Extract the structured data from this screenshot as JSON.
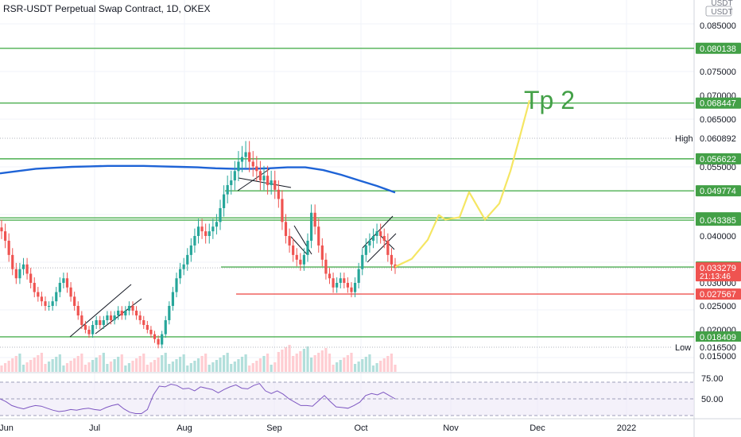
{
  "header": {
    "title": "RSR-USDT Perpetual Swap Contract, 1D, OKEX"
  },
  "chart_data": {
    "type": "candlestick",
    "currency_label": "USDT",
    "price_axis": {
      "ticks": [
        "0.085000",
        "0.075000",
        "0.070000",
        "0.065000",
        "0.055000",
        "0.040000",
        "0.030000",
        "0.025000",
        "0.020000",
        "0.016500",
        "0.015000"
      ],
      "labels": [
        {
          "value": "0.080138",
          "kind": "green"
        },
        {
          "value": "0.068447",
          "kind": "green"
        },
        {
          "value": "0.060892",
          "kind": "plain",
          "tag": "High"
        },
        {
          "value": "0.056622",
          "kind": "green"
        },
        {
          "value": "0.049774",
          "kind": "green"
        },
        {
          "value": "0.043888",
          "kind": "green"
        },
        {
          "value": "0.043385",
          "kind": "green"
        },
        {
          "value": "0.033455",
          "kind": "green"
        },
        {
          "value": "0.033279",
          "kind": "red",
          "sub": "21:13:46"
        },
        {
          "value": "0.027567",
          "kind": "red"
        },
        {
          "value": "0.018409",
          "kind": "green"
        },
        {
          "value": "0.016500",
          "kind": "plain",
          "tag": "Low"
        }
      ]
    },
    "time_axis": [
      "Jun",
      "Jul",
      "Aug",
      "Sep",
      "Oct",
      "Nov",
      "Dec",
      "2022"
    ],
    "annotations": [
      {
        "text": "Tp 2",
        "color": "#43a047"
      }
    ],
    "horizontal_levels": [
      0.080138,
      0.068447,
      0.056622,
      0.049774,
      0.043888,
      0.043385,
      0.033455,
      0.027567,
      0.018409
    ],
    "closes": [
      0.041,
      0.039,
      0.036,
      0.033,
      0.031,
      0.033,
      0.034,
      0.032,
      0.03,
      0.028,
      0.027,
      0.026,
      0.025,
      0.025,
      0.026,
      0.028,
      0.03,
      0.031,
      0.029,
      0.027,
      0.025,
      0.023,
      0.021,
      0.02,
      0.019,
      0.021,
      0.022,
      0.021,
      0.022,
      0.023,
      0.022,
      0.023,
      0.024,
      0.023,
      0.024,
      0.025,
      0.024,
      0.023,
      0.022,
      0.021,
      0.02,
      0.019,
      0.018,
      0.017,
      0.019,
      0.022,
      0.025,
      0.028,
      0.031,
      0.033,
      0.034,
      0.036,
      0.038,
      0.04,
      0.042,
      0.041,
      0.04,
      0.041,
      0.042,
      0.043,
      0.046,
      0.049,
      0.051,
      0.052,
      0.054,
      0.056,
      0.057,
      0.058,
      0.056,
      0.055,
      0.054,
      0.052,
      0.053,
      0.051,
      0.052,
      0.05,
      0.048,
      0.043,
      0.04,
      0.038,
      0.036,
      0.035,
      0.034,
      0.036,
      0.039,
      0.045,
      0.042,
      0.038,
      0.035,
      0.032,
      0.031,
      0.029,
      0.03,
      0.031,
      0.03,
      0.029,
      0.028,
      0.03,
      0.033,
      0.036,
      0.038,
      0.039,
      0.04,
      0.041,
      0.04,
      0.039,
      0.036,
      0.034,
      0.033279
    ],
    "ma200": [
      0.0535,
      0.054,
      0.0545,
      0.0547,
      0.0549,
      0.055,
      0.0551,
      0.0551,
      0.0551,
      0.055,
      0.0549,
      0.0548,
      0.0546,
      0.0545,
      0.0545,
      0.0546,
      0.0548,
      0.0548,
      0.0542,
      0.0532,
      0.052,
      0.0508,
      0.0494
    ],
    "projection": [
      0.0335,
      0.0352,
      0.0392,
      0.0445,
      0.0435,
      0.044,
      0.0495,
      0.0435,
      0.047,
      0.054,
      0.062,
      0.069
    ],
    "rsi": {
      "levels": [
        "75.00",
        "50.00"
      ],
      "values": [
        50,
        46,
        40,
        37,
        35,
        38,
        40,
        39,
        36,
        33,
        31,
        32,
        34,
        33,
        35,
        36,
        34,
        33,
        37,
        40,
        42,
        35,
        30,
        28,
        28,
        34,
        56,
        69,
        68,
        72,
        70,
        65,
        66,
        62,
        68,
        66,
        64,
        59,
        64,
        68,
        71,
        66,
        65,
        70,
        73,
        62,
        58,
        62,
        57,
        50,
        45,
        40,
        40,
        39,
        47,
        55,
        46,
        38,
        37,
        36,
        40,
        45,
        55,
        58,
        56,
        60,
        55,
        50
      ]
    }
  }
}
